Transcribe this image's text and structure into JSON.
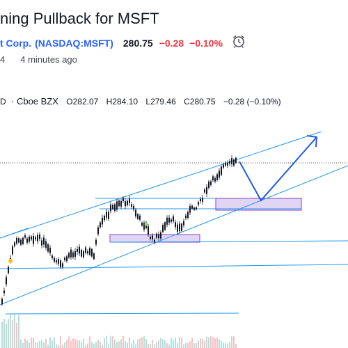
{
  "idea": {
    "title": "ning Pullback for MSFT",
    "company": "t Corp.",
    "ticker": "(NASDAQ:MSFT)",
    "price": "280.75",
    "change": "−0.28",
    "change_pct": "−0.10%",
    "date_fragment": "4",
    "time_ago": "4 minutes ago"
  },
  "legend": {
    "fragment": "D",
    "exchange": "· Cboe BZX",
    "open": "O282.07",
    "high": "H284.10",
    "low": "L279.46",
    "close": "C280.75",
    "change": "−0.28 (−0.10%)"
  },
  "colors": {
    "link": "#2962ff",
    "down": "#f23645",
    "trend_line": "#2196f3",
    "arrow": "#1e5ae6",
    "zone_fill": "#e1d5f4",
    "zone_border": "#8e3fbf"
  },
  "icons": {
    "alarm": "alarm-clock-icon"
  }
}
